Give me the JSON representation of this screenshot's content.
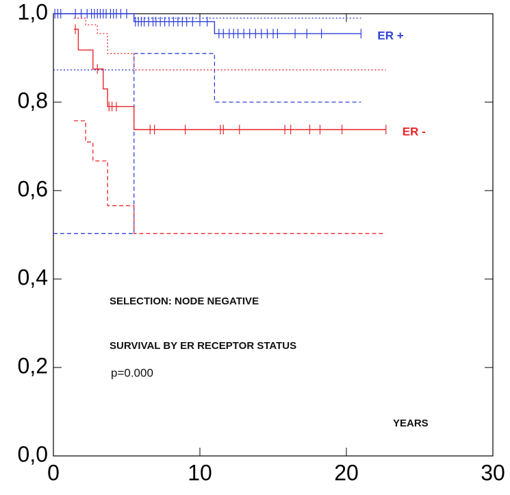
{
  "chart_data": {
    "type": "step",
    "xlim": [
      0,
      30
    ],
    "xticks": [
      0,
      10,
      20,
      30
    ],
    "ylim": [
      0,
      1
    ],
    "yticks": [
      {
        "value": 0,
        "label": "0,0"
      },
      {
        "value": 0.2,
        "label": "0,2"
      },
      {
        "value": 0.4,
        "label": "0,4"
      },
      {
        "value": 0.6,
        "label": "0,6"
      },
      {
        "value": 0.8,
        "label": "0,8"
      },
      {
        "value": 1,
        "label": "1,0"
      }
    ],
    "annotations": [
      "SELECTION: NODE NEGATIVE",
      "SURVIVAL BY ER RECEPTOR STATUS",
      "p=0.000",
      "YEARS"
    ],
    "series": [
      {
        "name": "ER +",
        "color": "#2f3fd9",
        "style": "solid",
        "x": [
          0,
          5.5,
          11,
          21
        ],
        "values": [
          1,
          0.982,
          0.955,
          0.955
        ],
        "censored": [
          0.1,
          0.3,
          0.5,
          1.5,
          1.9,
          2.3,
          2.6,
          2.8,
          3.0,
          3.2,
          3.4,
          3.6,
          3.9,
          4.1,
          4.3,
          4.6,
          5.0,
          5.6,
          5.8,
          6.0,
          6.2,
          6.5,
          6.8,
          7.0,
          7.3,
          7.6,
          7.9,
          8.2,
          8.5,
          8.8,
          9.1,
          9.5,
          10.0,
          10.5,
          11.3,
          11.6,
          12.0,
          12.3,
          12.6,
          13.0,
          13.4,
          13.8,
          14.2,
          14.6,
          15.0,
          15.3,
          16.5,
          17.3,
          18.3,
          21.0
        ]
      },
      {
        "color": "#2f3fd9",
        "style": "dotted",
        "x": [
          5.5,
          21
        ],
        "values": [
          0.99,
          0.99
        ]
      },
      {
        "color": "#2f3fd9",
        "style": "dotted",
        "x": [
          0,
          5.5
        ],
        "values": [
          0.873,
          0.873
        ]
      },
      {
        "color": "#2f3fd9",
        "style": "dashed",
        "x": [
          0,
          5.5,
          11,
          21
        ],
        "values": [
          0.503,
          0.91,
          0.8,
          0.8
        ]
      },
      {
        "name": "ER -",
        "color": "#e8242a",
        "style": "solid",
        "x": [
          1.4,
          1.7,
          2.7,
          3.4,
          3.7,
          5.5,
          22.7
        ],
        "values": [
          0.965,
          0.918,
          0.875,
          0.83,
          0.79,
          0.738,
          0.738
        ],
        "censored": [
          1.5,
          3.0,
          3.8,
          4.0,
          4.3,
          6.6,
          6.9,
          9.0,
          11.4,
          11.6,
          12.7,
          15.8,
          16.2,
          17.5,
          18.2,
          19.7,
          22.7
        ]
      },
      {
        "color": "#e8242a",
        "style": "dotted",
        "x": [
          1.4,
          2.2,
          3.0,
          3.7,
          5.5,
          22.7
        ],
        "values": [
          0.99,
          0.975,
          0.955,
          0.91,
          0.873,
          0.873
        ]
      },
      {
        "color": "#e8242a",
        "style": "dashed",
        "x": [
          1.4,
          2.2,
          2.7,
          3.7,
          5.5,
          22.7
        ],
        "values": [
          0.758,
          0.71,
          0.667,
          0.566,
          0.503,
          0.503
        ]
      }
    ]
  }
}
